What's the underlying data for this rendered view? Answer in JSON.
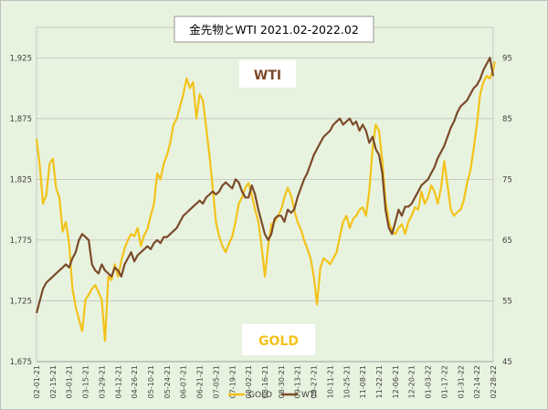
{
  "chart_data": {
    "type": "line",
    "title": "金先物とWTI 2021.02-2022.02",
    "annotations": [
      "WTI",
      "GOLD"
    ],
    "background": "#e8f3df",
    "grid": true,
    "legend_position": "bottom",
    "y_left": {
      "ylim": [
        1675,
        1950
      ],
      "ticks": [
        "1,675",
        "1,725",
        "1,775",
        "1,825",
        "1,875",
        "1,925"
      ],
      "tick_values": [
        1675,
        1725,
        1775,
        1825,
        1875,
        1925
      ]
    },
    "y_right": {
      "ylim": [
        45,
        100
      ],
      "ticks": [
        "45",
        "55",
        "65",
        "75",
        "85",
        "95"
      ],
      "tick_values": [
        45,
        55,
        65,
        75,
        85,
        95
      ]
    },
    "x_ticks": [
      "02-01-21",
      "02-15-21",
      "03-01-21",
      "03-15-21",
      "03-29-21",
      "04-12-21",
      "04-26-21",
      "05-10-21",
      "05-24-21",
      "06-07-21",
      "06-21-21",
      "07-05-21",
      "07-19-21",
      "08-02-21",
      "08-16-21",
      "08-30-21",
      "09-13-21",
      "09-27-21",
      "10-11-21",
      "10-25-21",
      "11-08-21",
      "11-22-21",
      "12-06-21",
      "12-20-21",
      "01-03-22",
      "01-17-22",
      "01-31-22",
      "02-14-22",
      "02-28-22"
    ],
    "series": [
      {
        "name": "GOLD",
        "axis": "left",
        "color": "#f3c21a",
        "points": [
          [
            0,
            1858
          ],
          [
            0.2,
            1836
          ],
          [
            0.4,
            1805
          ],
          [
            0.6,
            1812
          ],
          [
            0.8,
            1838
          ],
          [
            1,
            1842
          ],
          [
            1.2,
            1818
          ],
          [
            1.4,
            1810
          ],
          [
            1.6,
            1782
          ],
          [
            1.8,
            1790
          ],
          [
            2,
            1772
          ],
          [
            2.2,
            1735
          ],
          [
            2.4,
            1720
          ],
          [
            2.6,
            1710
          ],
          [
            2.8,
            1700
          ],
          [
            3,
            1726
          ],
          [
            3.2,
            1730
          ],
          [
            3.4,
            1735
          ],
          [
            3.6,
            1738
          ],
          [
            3.8,
            1732
          ],
          [
            4,
            1726
          ],
          [
            4.2,
            1692
          ],
          [
            4.4,
            1745
          ],
          [
            4.6,
            1742
          ],
          [
            4.8,
            1755
          ],
          [
            5,
            1745
          ],
          [
            5.2,
            1758
          ],
          [
            5.4,
            1768
          ],
          [
            5.6,
            1775
          ],
          [
            5.8,
            1780
          ],
          [
            6,
            1778
          ],
          [
            6.2,
            1785
          ],
          [
            6.4,
            1770
          ],
          [
            6.6,
            1779
          ],
          [
            6.8,
            1784
          ],
          [
            7,
            1795
          ],
          [
            7.2,
            1805
          ],
          [
            7.4,
            1830
          ],
          [
            7.6,
            1825
          ],
          [
            7.8,
            1838
          ],
          [
            8,
            1845
          ],
          [
            8.2,
            1855
          ],
          [
            8.4,
            1870
          ],
          [
            8.6,
            1875
          ],
          [
            8.8,
            1885
          ],
          [
            9,
            1895
          ],
          [
            9.2,
            1908
          ],
          [
            9.4,
            1900
          ],
          [
            9.6,
            1905
          ],
          [
            9.8,
            1875
          ],
          [
            10,
            1895
          ],
          [
            10.2,
            1890
          ],
          [
            10.4,
            1868
          ],
          [
            10.6,
            1845
          ],
          [
            10.8,
            1818
          ],
          [
            11,
            1790
          ],
          [
            11.2,
            1778
          ],
          [
            11.4,
            1770
          ],
          [
            11.6,
            1765
          ],
          [
            11.8,
            1772
          ],
          [
            12,
            1778
          ],
          [
            12.2,
            1790
          ],
          [
            12.4,
            1805
          ],
          [
            12.6,
            1810
          ],
          [
            12.8,
            1818
          ],
          [
            13,
            1822
          ],
          [
            13.2,
            1812
          ],
          [
            13.4,
            1800
          ],
          [
            13.6,
            1790
          ],
          [
            13.8,
            1770
          ],
          [
            14,
            1745
          ],
          [
            14.2,
            1770
          ],
          [
            14.4,
            1788
          ],
          [
            14.6,
            1790
          ],
          [
            14.8,
            1795
          ],
          [
            15,
            1800
          ],
          [
            15.2,
            1810
          ],
          [
            15.4,
            1818
          ],
          [
            15.6,
            1812
          ],
          [
            15.8,
            1800
          ],
          [
            16,
            1790
          ],
          [
            16.2,
            1784
          ],
          [
            16.4,
            1775
          ],
          [
            16.6,
            1768
          ],
          [
            16.8,
            1760
          ],
          [
            17,
            1745
          ],
          [
            17.2,
            1722
          ],
          [
            17.4,
            1752
          ],
          [
            17.6,
            1760
          ],
          [
            17.8,
            1758
          ],
          [
            18,
            1755
          ],
          [
            18.2,
            1760
          ],
          [
            18.4,
            1765
          ],
          [
            18.6,
            1778
          ],
          [
            18.8,
            1790
          ],
          [
            19,
            1795
          ],
          [
            19.2,
            1785
          ],
          [
            19.4,
            1792
          ],
          [
            19.6,
            1795
          ],
          [
            19.8,
            1800
          ],
          [
            20,
            1802
          ],
          [
            20.2,
            1795
          ],
          [
            20.4,
            1815
          ],
          [
            20.6,
            1850
          ],
          [
            20.8,
            1870
          ],
          [
            21,
            1865
          ],
          [
            21.2,
            1840
          ],
          [
            21.4,
            1808
          ],
          [
            21.6,
            1790
          ],
          [
            21.8,
            1782
          ],
          [
            22,
            1780
          ],
          [
            22.2,
            1785
          ],
          [
            22.4,
            1788
          ],
          [
            22.6,
            1780
          ],
          [
            22.8,
            1790
          ],
          [
            23,
            1795
          ],
          [
            23.2,
            1802
          ],
          [
            23.4,
            1800
          ],
          [
            23.6,
            1815
          ],
          [
            23.8,
            1805
          ],
          [
            24,
            1810
          ],
          [
            24.2,
            1820
          ],
          [
            24.4,
            1815
          ],
          [
            24.6,
            1805
          ],
          [
            24.8,
            1818
          ],
          [
            25,
            1840
          ],
          [
            25.2,
            1820
          ],
          [
            25.4,
            1800
          ],
          [
            25.6,
            1795
          ],
          [
            25.8,
            1798
          ],
          [
            26,
            1800
          ],
          [
            26.2,
            1808
          ],
          [
            26.4,
            1822
          ],
          [
            26.6,
            1832
          ],
          [
            26.8,
            1850
          ],
          [
            27,
            1870
          ],
          [
            27.2,
            1895
          ],
          [
            27.4,
            1905
          ],
          [
            27.6,
            1910
          ],
          [
            27.8,
            1908
          ],
          [
            28,
            1915
          ],
          [
            28.1,
            1922
          ]
        ]
      },
      {
        "name": "WTI",
        "axis": "right",
        "color": "#7b4a2a",
        "points": [
          [
            0,
            53
          ],
          [
            0.2,
            55
          ],
          [
            0.4,
            57
          ],
          [
            0.6,
            58
          ],
          [
            0.8,
            58.5
          ],
          [
            1,
            59
          ],
          [
            1.2,
            59.5
          ],
          [
            1.4,
            60
          ],
          [
            1.6,
            60.5
          ],
          [
            1.8,
            61
          ],
          [
            2,
            60.5
          ],
          [
            2.2,
            62
          ],
          [
            2.4,
            63
          ],
          [
            2.6,
            65
          ],
          [
            2.8,
            66
          ],
          [
            3,
            65.5
          ],
          [
            3.2,
            65
          ],
          [
            3.4,
            61
          ],
          [
            3.6,
            60
          ],
          [
            3.8,
            59.5
          ],
          [
            4,
            61
          ],
          [
            4.2,
            60
          ],
          [
            4.4,
            59.5
          ],
          [
            4.6,
            59
          ],
          [
            4.8,
            60.5
          ],
          [
            5,
            60
          ],
          [
            5.2,
            59
          ],
          [
            5.4,
            61
          ],
          [
            5.6,
            62
          ],
          [
            5.8,
            63
          ],
          [
            6,
            61.5
          ],
          [
            6.2,
            62.5
          ],
          [
            6.4,
            63
          ],
          [
            6.6,
            63.5
          ],
          [
            6.8,
            64
          ],
          [
            7,
            63.5
          ],
          [
            7.2,
            64.5
          ],
          [
            7.4,
            65
          ],
          [
            7.6,
            64.5
          ],
          [
            7.8,
            65.5
          ],
          [
            8,
            65.5
          ],
          [
            8.2,
            66
          ],
          [
            8.4,
            66.5
          ],
          [
            8.6,
            67
          ],
          [
            8.8,
            68
          ],
          [
            9,
            69
          ],
          [
            9.2,
            69.5
          ],
          [
            9.4,
            70
          ],
          [
            9.6,
            70.5
          ],
          [
            9.8,
            71
          ],
          [
            10,
            71.5
          ],
          [
            10.2,
            71
          ],
          [
            10.4,
            72
          ],
          [
            10.6,
            72.5
          ],
          [
            10.8,
            73
          ],
          [
            11,
            72.5
          ],
          [
            11.2,
            73
          ],
          [
            11.4,
            74
          ],
          [
            11.6,
            74.5
          ],
          [
            11.8,
            74
          ],
          [
            12,
            73.5
          ],
          [
            12.2,
            75
          ],
          [
            12.4,
            74.5
          ],
          [
            12.6,
            73
          ],
          [
            12.8,
            72
          ],
          [
            13,
            72
          ],
          [
            13.2,
            74
          ],
          [
            13.4,
            72.5
          ],
          [
            13.6,
            70
          ],
          [
            13.8,
            68
          ],
          [
            14,
            66
          ],
          [
            14.2,
            65
          ],
          [
            14.4,
            66
          ],
          [
            14.6,
            68.5
          ],
          [
            14.8,
            69
          ],
          [
            15,
            69
          ],
          [
            15.2,
            68
          ],
          [
            15.4,
            70
          ],
          [
            15.6,
            69.5
          ],
          [
            15.8,
            70
          ],
          [
            16,
            72
          ],
          [
            16.2,
            73.5
          ],
          [
            16.4,
            75
          ],
          [
            16.6,
            76
          ],
          [
            16.8,
            77.5
          ],
          [
            17,
            79
          ],
          [
            17.2,
            80
          ],
          [
            17.4,
            81
          ],
          [
            17.6,
            82
          ],
          [
            17.8,
            82.5
          ],
          [
            18,
            83
          ],
          [
            18.2,
            84
          ],
          [
            18.4,
            84.5
          ],
          [
            18.6,
            85
          ],
          [
            18.8,
            84
          ],
          [
            19,
            84.5
          ],
          [
            19.2,
            85
          ],
          [
            19.4,
            84
          ],
          [
            19.6,
            84.5
          ],
          [
            19.8,
            83
          ],
          [
            20,
            84
          ],
          [
            20.2,
            83
          ],
          [
            20.4,
            81
          ],
          [
            20.6,
            82
          ],
          [
            20.8,
            80
          ],
          [
            21,
            79
          ],
          [
            21.2,
            76
          ],
          [
            21.4,
            70
          ],
          [
            21.6,
            67
          ],
          [
            21.8,
            66
          ],
          [
            22,
            68
          ],
          [
            22.2,
            70
          ],
          [
            22.4,
            69
          ],
          [
            22.6,
            70.5
          ],
          [
            22.8,
            70.5
          ],
          [
            23,
            71
          ],
          [
            23.2,
            72
          ],
          [
            23.4,
            73
          ],
          [
            23.6,
            74
          ],
          [
            23.8,
            74.5
          ],
          [
            24,
            75
          ],
          [
            24.2,
            76
          ],
          [
            24.4,
            77
          ],
          [
            24.6,
            78.5
          ],
          [
            24.8,
            79.5
          ],
          [
            25,
            80.5
          ],
          [
            25.2,
            82
          ],
          [
            25.4,
            83.5
          ],
          [
            25.6,
            84.5
          ],
          [
            25.8,
            86
          ],
          [
            26,
            87
          ],
          [
            26.2,
            87.5
          ],
          [
            26.4,
            88
          ],
          [
            26.6,
            89
          ],
          [
            26.8,
            90
          ],
          [
            27,
            90.5
          ],
          [
            27.2,
            91.5
          ],
          [
            27.4,
            93
          ],
          [
            27.6,
            94
          ],
          [
            27.8,
            95
          ],
          [
            28,
            92
          ]
        ]
      }
    ]
  }
}
